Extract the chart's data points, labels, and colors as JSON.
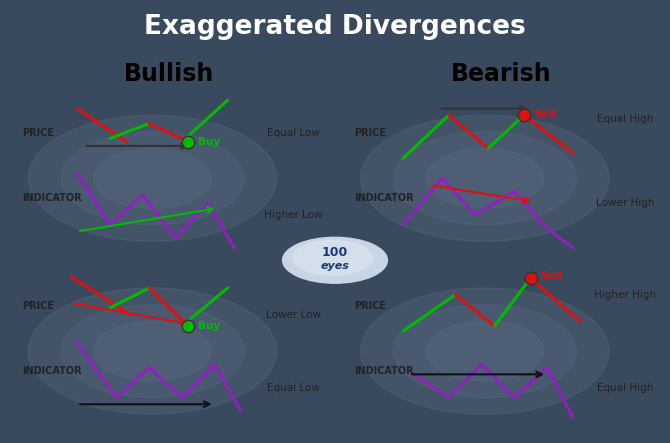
{
  "title": "Exaggerated Divergences",
  "title_bg": "#3a4a5e",
  "title_color": "white",
  "bullish_header_color": "#2db84b",
  "bearish_header_color": "#e85555",
  "panel_bg": "#dde8f2",
  "outer_bg": "#3a4a5e",
  "bullish_label": "Bullish",
  "bearish_label": "Bearish",
  "green": "#00bb00",
  "red": "#dd1111",
  "purple": "#9020c0",
  "black": "#111111"
}
